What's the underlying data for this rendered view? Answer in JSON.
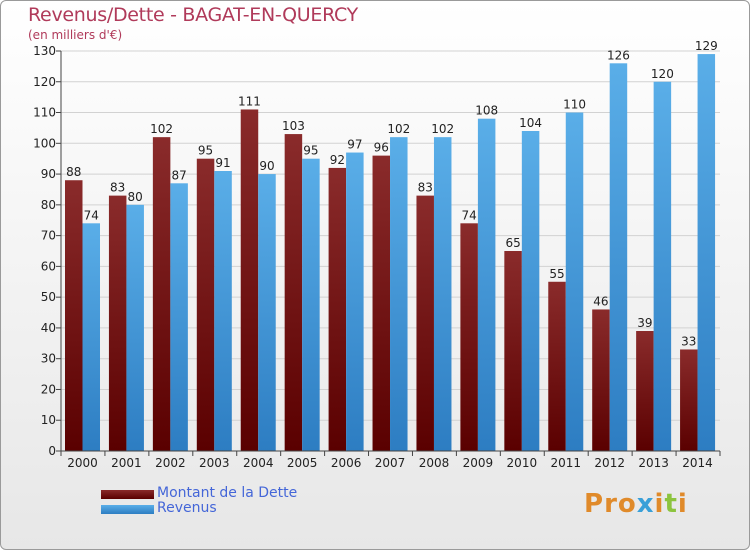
{
  "header": {
    "title": "Revenus/Dette - BAGAT-EN-QUERCY",
    "subtitle": "(en milliers d'€)"
  },
  "legend": {
    "items": [
      {
        "label": "Montant de la Dette",
        "color": "#7a1010"
      },
      {
        "label": "Revenus",
        "color": "#4a9fe0"
      }
    ]
  },
  "logo": {
    "text": "Proxiti",
    "colors": [
      "#e08a2a",
      "#3aa0d8",
      "#8cc43e"
    ]
  },
  "chart_data": {
    "type": "bar",
    "title": "Revenus/Dette - BAGAT-EN-QUERCY",
    "ylabel": "(en milliers d'€)",
    "categories": [
      "2000",
      "2001",
      "2002",
      "2003",
      "2004",
      "2005",
      "2006",
      "2007",
      "2008",
      "2009",
      "2010",
      "2011",
      "2012",
      "2013",
      "2014"
    ],
    "series": [
      {
        "name": "Montant de la Dette",
        "color": "#7a1010",
        "values": [
          88,
          83,
          102,
          95,
          111,
          103,
          92,
          96,
          83,
          74,
          65,
          55,
          46,
          39,
          33
        ]
      },
      {
        "name": "Revenus",
        "color": "#4a9fe0",
        "values": [
          74,
          80,
          87,
          91,
          90,
          95,
          97,
          102,
          102,
          108,
          104,
          110,
          126,
          120,
          129
        ]
      }
    ],
    "ylim": [
      0,
      130
    ],
    "yticks": [
      0,
      10,
      20,
      30,
      40,
      50,
      60,
      70,
      80,
      90,
      100,
      110,
      120,
      130
    ],
    "grid": true,
    "legend_position": "bottom-left"
  }
}
